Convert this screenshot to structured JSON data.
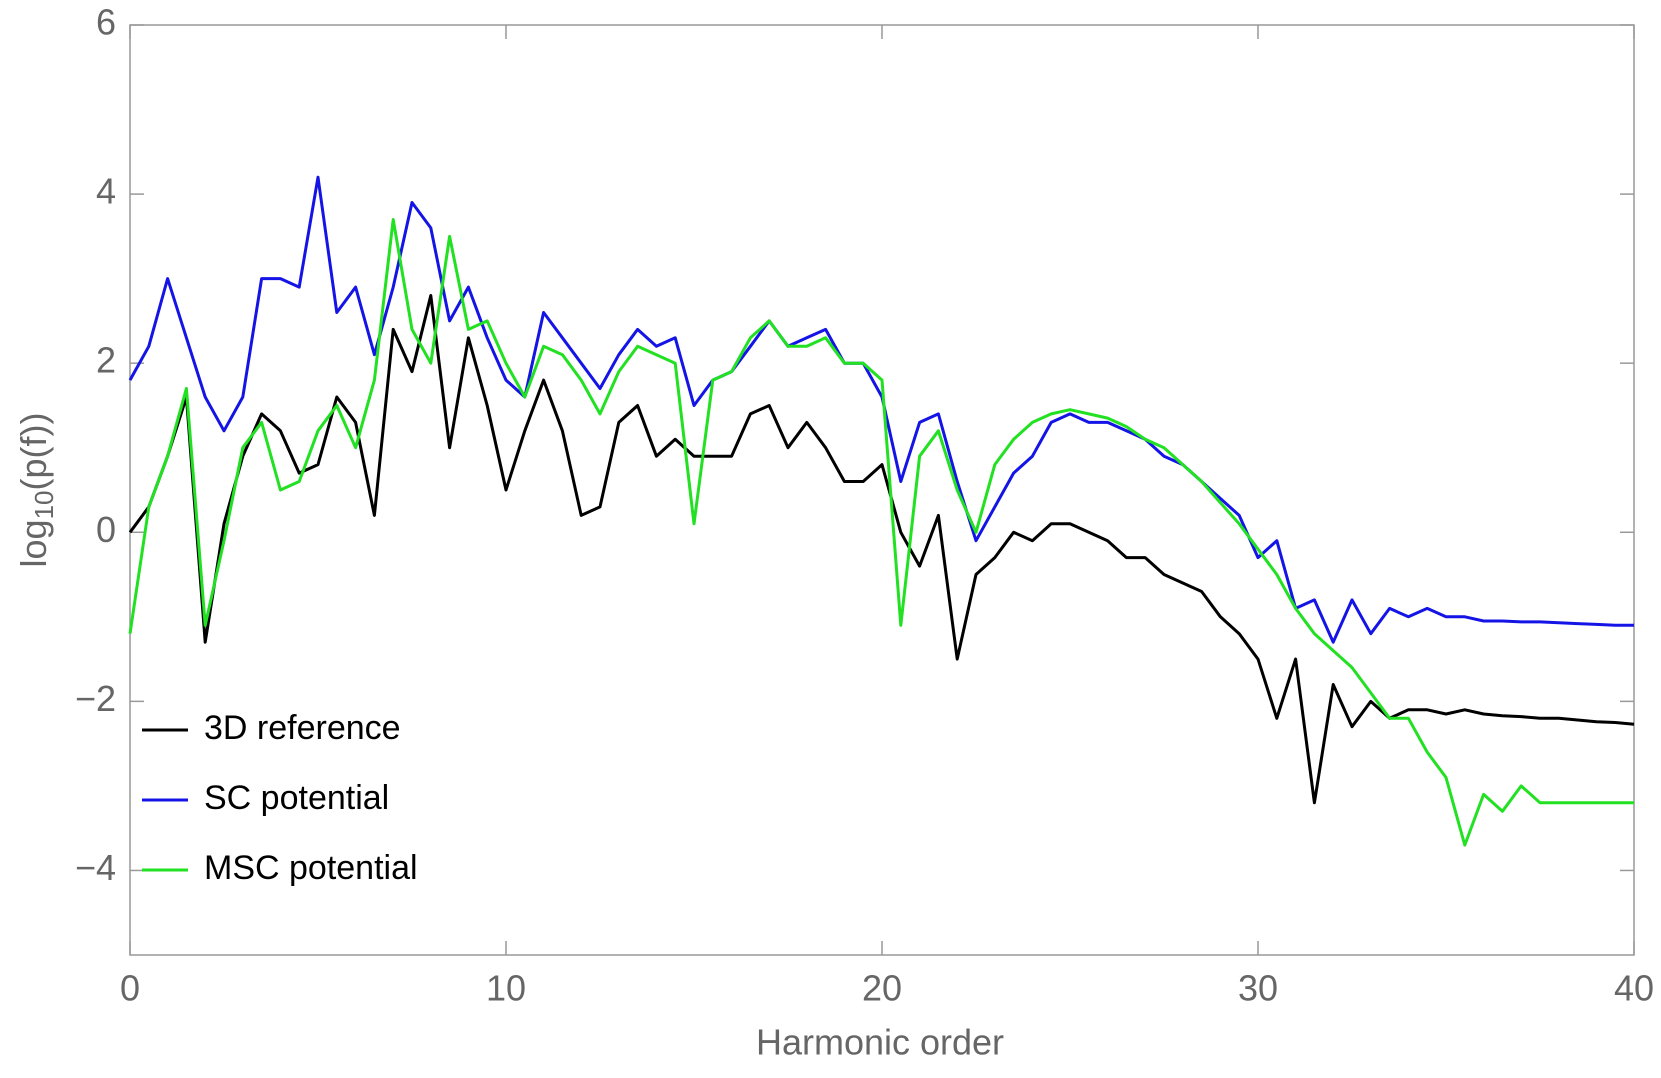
{
  "chart_data": {
    "type": "line",
    "xlabel": "Harmonic order",
    "ylabel": {
      "base": "log",
      "subscript": "10",
      "argument": "(p(f))"
    },
    "x": [
      0,
      0.5,
      1,
      1.5,
      2,
      2.5,
      3,
      3.5,
      4,
      4.5,
      5,
      5.5,
      6,
      6.5,
      7,
      7.5,
      8,
      8.5,
      9,
      9.5,
      10,
      10.5,
      11,
      11.5,
      12,
      12.5,
      13,
      13.5,
      14,
      14.5,
      15,
      15.5,
      16,
      16.5,
      17,
      17.5,
      18,
      18.5,
      19,
      19.5,
      20,
      20.5,
      21,
      21.5,
      22,
      22.5,
      23,
      23.5,
      24,
      24.5,
      25,
      25.5,
      26,
      26.5,
      27,
      27.5,
      28,
      28.5,
      29,
      29.5,
      30,
      30.5,
      31,
      31.5,
      32,
      32.5,
      33,
      33.5,
      34,
      34.5,
      35,
      35.5,
      36,
      36.5,
      37,
      37.5,
      38,
      38.5,
      39,
      39.5,
      40
    ],
    "series": [
      {
        "name": "3D reference",
        "color": "#000000",
        "values": [
          0,
          0.3,
          0.9,
          1.6,
          -1.3,
          0.1,
          0.9,
          1.4,
          1.2,
          0.7,
          0.8,
          1.6,
          1.3,
          0.2,
          2.4,
          1.9,
          2.8,
          1.0,
          2.3,
          1.5,
          0.5,
          1.2,
          1.8,
          1.2,
          0.2,
          0.3,
          1.3,
          1.5,
          0.9,
          1.1,
          0.9,
          0.9,
          0.9,
          1.4,
          1.5,
          1.0,
          1.3,
          1.0,
          0.6,
          0.6,
          0.8,
          0.0,
          -0.4,
          0.2,
          -1.5,
          -0.5,
          -0.3,
          0.0,
          -0.1,
          0.1,
          0.1,
          0.0,
          -0.1,
          -0.3,
          -0.3,
          -0.5,
          -0.6,
          -0.7,
          -1.0,
          -1.2,
          -1.5,
          -2.2,
          -1.5,
          -3.2,
          -1.8,
          -2.3,
          -2.0,
          -2.2,
          -2.1,
          -2.1,
          -2.15,
          -2.1,
          -2.15,
          -2.17,
          -2.18,
          -2.2,
          -2.2,
          -2.22,
          -2.24,
          -2.25,
          -2.27
        ]
      },
      {
        "name": "SC potential",
        "color": "#1414e6",
        "values": [
          1.8,
          2.2,
          3.0,
          2.3,
          1.6,
          1.2,
          1.6,
          3.0,
          3.0,
          2.9,
          4.2,
          2.6,
          2.9,
          2.1,
          2.9,
          3.9,
          3.6,
          2.5,
          2.9,
          2.3,
          1.8,
          1.6,
          2.6,
          2.3,
          2.0,
          1.7,
          2.1,
          2.4,
          2.2,
          2.3,
          1.5,
          1.8,
          1.9,
          2.2,
          2.5,
          2.2,
          2.3,
          2.4,
          2.0,
          2.0,
          1.6,
          0.6,
          1.3,
          1.4,
          0.6,
          -0.1,
          0.3,
          0.7,
          0.9,
          1.3,
          1.4,
          1.3,
          1.3,
          1.2,
          1.1,
          0.9,
          0.8,
          0.6,
          0.4,
          0.2,
          -0.3,
          -0.1,
          -0.9,
          -0.8,
          -1.3,
          -0.8,
          -1.2,
          -0.9,
          -1.0,
          -0.9,
          -1.0,
          -1.0,
          -1.05,
          -1.05,
          -1.06,
          -1.06,
          -1.07,
          -1.08,
          -1.09,
          -1.1,
          -1.1
        ]
      },
      {
        "name": "MSC potential",
        "color": "#22e022",
        "values": [
          -1.2,
          0.3,
          0.9,
          1.7,
          -1.1,
          -0.1,
          1.0,
          1.3,
          0.5,
          0.6,
          1.2,
          1.5,
          1.0,
          1.8,
          3.7,
          2.4,
          2.0,
          3.5,
          2.4,
          2.5,
          2.0,
          1.6,
          2.2,
          2.1,
          1.8,
          1.4,
          1.9,
          2.2,
          2.1,
          2.0,
          0.1,
          1.8,
          1.9,
          2.3,
          2.5,
          2.2,
          2.2,
          2.3,
          2.0,
          2.0,
          1.8,
          -1.1,
          0.9,
          1.2,
          0.5,
          0.0,
          0.8,
          1.1,
          1.3,
          1.4,
          1.45,
          1.4,
          1.35,
          1.25,
          1.1,
          1.0,
          0.8,
          0.6,
          0.35,
          0.1,
          -0.2,
          -0.5,
          -0.9,
          -1.2,
          -1.4,
          -1.6,
          -1.9,
          -2.2,
          -2.2,
          -2.6,
          -2.9,
          -3.7,
          -3.1,
          -3.3,
          -3.0,
          -3.2,
          -3.2,
          -3.2,
          -3.2,
          -3.2,
          -3.2
        ]
      }
    ],
    "xlim": [
      0,
      40
    ],
    "xticks": [
      0,
      10,
      20,
      30,
      40
    ],
    "ylim": [
      -5,
      6
    ],
    "yticks": [
      {
        "value": -4,
        "label": "−4"
      },
      {
        "value": -2,
        "label": "−2"
      },
      0,
      2,
      4,
      6
    ],
    "legend": "lower left"
  }
}
